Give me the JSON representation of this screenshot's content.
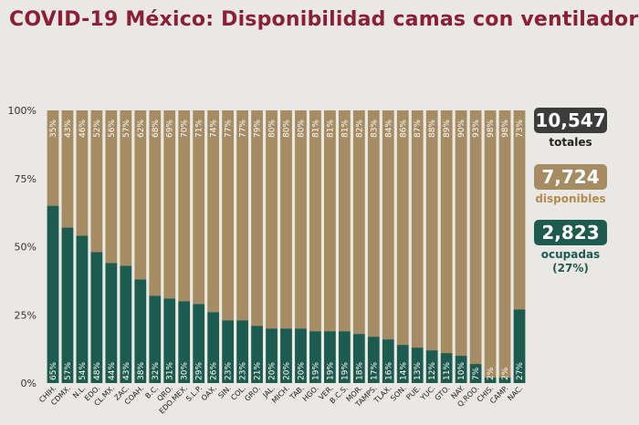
{
  "title": "COVID-19 México: Disponibilidad camas con ventilador",
  "summary": {
    "total_value": "10,547",
    "total_label": "totales",
    "available_value": "7,724",
    "available_label": "disponibles",
    "occupied_value": "2,823",
    "occupied_label": "ocupadas",
    "occupied_pct": "(27%)"
  },
  "colors": {
    "occupied": "#1e5b4f",
    "available": "#a58c62",
    "total": "#3c3c3c",
    "title": "#8a1f37",
    "disp_label": "#b38b4d",
    "ocup_label": "#1e5b4f"
  },
  "chart_data": {
    "type": "bar",
    "stacked": true,
    "categories": [
      "CHIH.",
      "CDMX.",
      "N.L.",
      "EDO.",
      "CL.MX.",
      "ZAC.",
      "COAH.",
      "B.C.",
      "QRO.",
      "EDO.MEX.",
      "S.L.P.",
      "OAX.",
      "SIN.",
      "COL.",
      "GRO.",
      "JAL.",
      "MICH.",
      "TAB.",
      "HGO.",
      "VER.",
      "B.C.S.",
      "MOR.",
      "TAMPS.",
      "TLAX.",
      "SON.",
      "PUE.",
      "YUC.",
      "GTO.",
      "NAY.",
      "Q.ROO.",
      "CHIS.",
      "CAMP.",
      "NAC."
    ],
    "series": [
      {
        "name": "ocupadas",
        "values": [
          65,
          57,
          54,
          48,
          44,
          43,
          38,
          32,
          31,
          30,
          29,
          26,
          23,
          23,
          21,
          20,
          20,
          20,
          19,
          19,
          19,
          18,
          17,
          16,
          14,
          13,
          12,
          11,
          10,
          7,
          2,
          2,
          27
        ]
      },
      {
        "name": "disponibles",
        "values": [
          35,
          43,
          46,
          52,
          56,
          57,
          62,
          68,
          69,
          70,
          71,
          74,
          77,
          77,
          79,
          80,
          80,
          80,
          81,
          81,
          81,
          82,
          83,
          84,
          86,
          87,
          88,
          89,
          90,
          93,
          98,
          98,
          73
        ]
      }
    ],
    "occupied_labels": [
      "65%",
      "57%",
      "54%",
      "48%",
      "44%",
      "43%",
      "38%",
      "32%",
      "31%",
      "30%",
      "29%",
      "26%",
      "23%",
      "23%",
      "21%",
      "20%",
      "20%",
      "20%",
      "19%",
      "19%",
      "19%",
      "18%",
      "17%",
      "16%",
      "14%",
      "13%",
      "12%",
      "11%",
      "10%",
      "7%",
      "2%",
      "2%",
      "27%"
    ],
    "available_labels": [
      "35%",
      "43%",
      "46%",
      "52%",
      "56%",
      "57%",
      "62%",
      "68%",
      "69%",
      "70%",
      "71%",
      "74%",
      "77%",
      "77%",
      "79%",
      "80%",
      "80%",
      "80%",
      "81%",
      "81%",
      "81%",
      "82%",
      "83%",
      "84%",
      "86%",
      "87%",
      "88%",
      "89%",
      "90%",
      "93%",
      "98%",
      "98%",
      "73%"
    ],
    "yticks": [
      "0%",
      "25%",
      "50%",
      "75%",
      "100%"
    ],
    "ylim": [
      0,
      100
    ]
  }
}
